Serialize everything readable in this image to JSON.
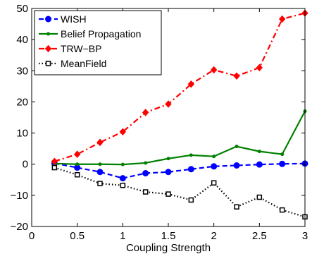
{
  "chart_data": {
    "type": "line",
    "title": "",
    "xlabel": "Coupling Strength",
    "ylabel": "",
    "xlim": [
      0,
      3
    ],
    "ylim": [
      -20,
      50
    ],
    "xticks": [
      0,
      0.5,
      1,
      1.5,
      2,
      2.5,
      3
    ],
    "xtick_labels": [
      "0",
      "0.5",
      "1",
      "1.5",
      "2",
      "2.5",
      "3"
    ],
    "yticks": [
      -20,
      -10,
      0,
      10,
      20,
      30,
      40,
      50
    ],
    "ytick_labels": [
      "−20",
      "−10",
      "0",
      "10",
      "20",
      "30",
      "40",
      "50"
    ],
    "grid": false,
    "legend_position": "top-left",
    "x": [
      0.25,
      0.5,
      0.75,
      1.0,
      1.25,
      1.5,
      1.75,
      2.0,
      2.25,
      2.5,
      2.75,
      3.0
    ],
    "series": [
      {
        "name": "WISH",
        "color": "#0000ff",
        "line_style": "dashed",
        "marker": "circle",
        "values": [
          0.3,
          -1.1,
          -2.5,
          -4.5,
          -2.9,
          -2.5,
          -1.6,
          -0.7,
          -0.4,
          -0.1,
          0.1,
          0.2
        ]
      },
      {
        "name": "Belief Propagation",
        "color": "#008000",
        "line_style": "solid",
        "marker": "point",
        "values": [
          0.2,
          0.0,
          0.0,
          -0.1,
          0.4,
          1.8,
          2.9,
          2.5,
          5.7,
          4.1,
          3.2,
          17.0
        ]
      },
      {
        "name": "TRW−BP",
        "color": "#ff0000",
        "line_style": "dashdot",
        "marker": "diamond",
        "values": [
          0.9,
          3.2,
          7.0,
          10.4,
          16.6,
          19.3,
          25.7,
          30.3,
          28.3,
          31.0,
          46.6,
          48.5
        ]
      },
      {
        "name": "MeanField",
        "color": "#000000",
        "line_style": "dotted",
        "marker": "square",
        "values": [
          -1.1,
          -3.4,
          -6.2,
          -6.8,
          -8.9,
          -9.6,
          -11.5,
          -6.0,
          -13.7,
          -10.6,
          -14.7,
          -16.9
        ]
      }
    ]
  }
}
